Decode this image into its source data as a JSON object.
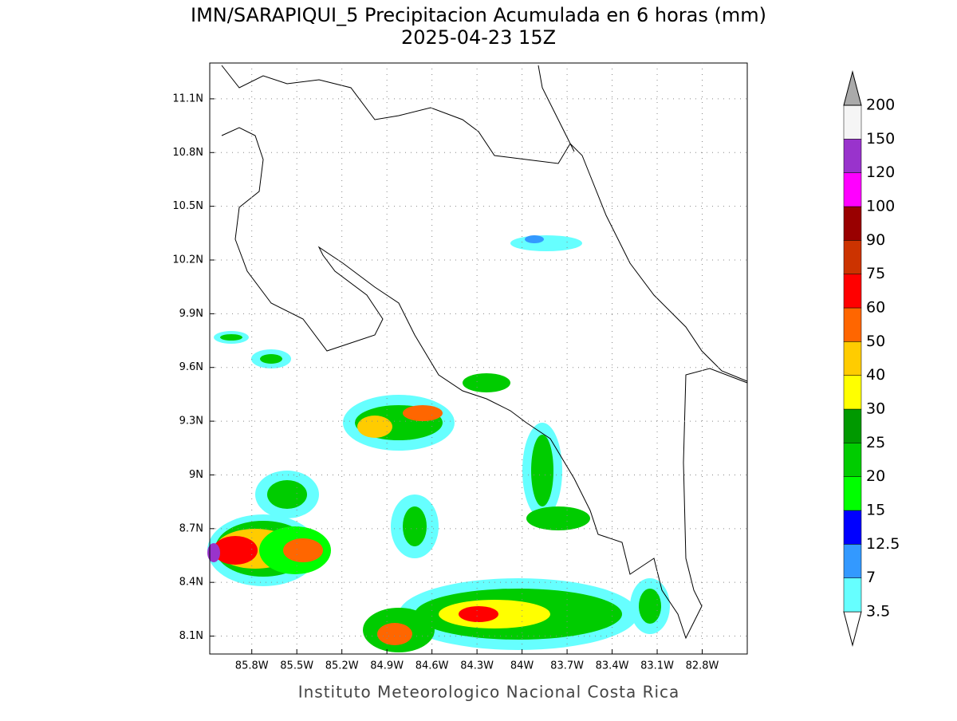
{
  "chart_data": {
    "type": "map",
    "title": "IMN/SARAPIQUI_5 Precipitacion Acumulada en 6 horas (mm)",
    "subtitle": "2025-04-23 15Z",
    "footer": "Instituto Meteorologico Nacional Costa Rica",
    "xlim": [
      -86.08,
      -82.5
    ],
    "ylim": [
      8.0,
      11.3
    ],
    "xticks": [
      {
        "value": -85.8,
        "label": "85.8W"
      },
      {
        "value": -85.5,
        "label": "85.5W"
      },
      {
        "value": -85.2,
        "label": "85.2W"
      },
      {
        "value": -84.9,
        "label": "84.9W"
      },
      {
        "value": -84.6,
        "label": "84.6W"
      },
      {
        "value": -84.3,
        "label": "84.3W"
      },
      {
        "value": -84.0,
        "label": "84W"
      },
      {
        "value": -83.7,
        "label": "83.7W"
      },
      {
        "value": -83.4,
        "label": "83.4W"
      },
      {
        "value": -83.1,
        "label": "83.1W"
      },
      {
        "value": -82.8,
        "label": "82.8W"
      }
    ],
    "yticks": [
      {
        "value": 8.1,
        "label": "8.1N"
      },
      {
        "value": 8.4,
        "label": "8.4N"
      },
      {
        "value": 8.7,
        "label": "8.7N"
      },
      {
        "value": 9.0,
        "label": "9N"
      },
      {
        "value": 9.3,
        "label": "9.3N"
      },
      {
        "value": 9.6,
        "label": "9.6N"
      },
      {
        "value": 9.9,
        "label": "9.9N"
      },
      {
        "value": 10.2,
        "label": "10.2N"
      },
      {
        "value": 10.5,
        "label": "10.5N"
      },
      {
        "value": 10.8,
        "label": "10.8N"
      },
      {
        "value": 11.1,
        "label": "11.1N"
      }
    ],
    "grid": true,
    "colorbar": {
      "levels": [
        3.5,
        7,
        12.5,
        15,
        20,
        25,
        30,
        40,
        50,
        60,
        75,
        90,
        100,
        120,
        150,
        200
      ],
      "colors": [
        "#ffffff",
        "#66ffff",
        "#3399ff",
        "#0000ff",
        "#00ff00",
        "#00cc00",
        "#009900",
        "#ffff00",
        "#ffcc00",
        "#ff6600",
        "#ff0000",
        "#cc3300",
        "#990000",
        "#ff00ff",
        "#9933cc",
        "#f5f5f5",
        "#aaaaaa"
      ]
    }
  }
}
